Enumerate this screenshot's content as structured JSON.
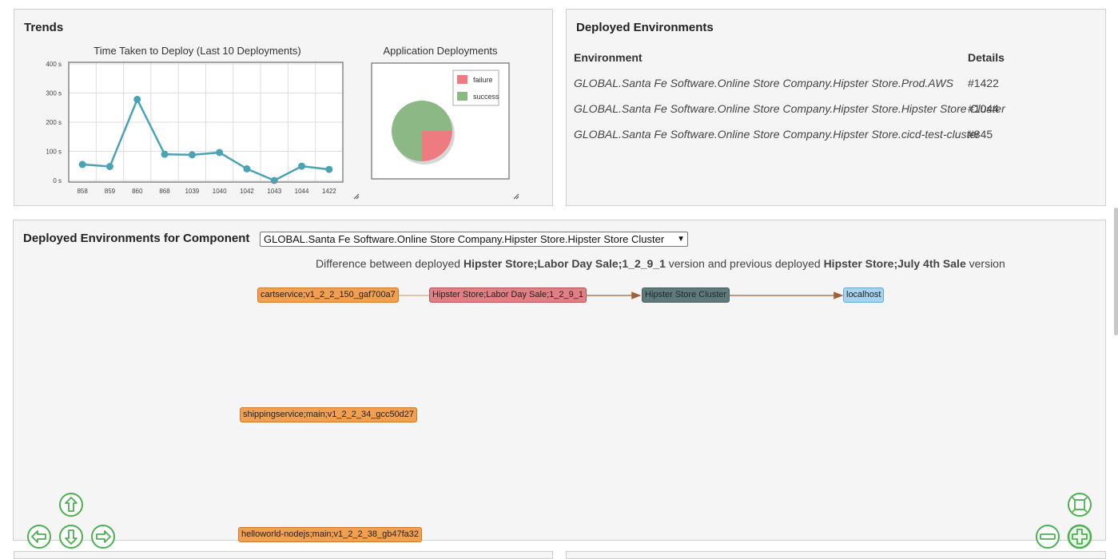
{
  "trends": {
    "title": "Trends",
    "line_chart": {
      "chart_data": {
        "type": "line",
        "title": "Time Taken to Deploy (Last 10 Deployments)",
        "categories": [
          "858",
          "859",
          "860",
          "868",
          "1039",
          "1040",
          "1042",
          "1043",
          "1044",
          "1422"
        ],
        "values": [
          55,
          48,
          278,
          90,
          88,
          96,
          40,
          0,
          49,
          38
        ],
        "y_ticks": [
          "0 s",
          "100 s",
          "200 s",
          "300 s",
          "400 s"
        ],
        "ylim": [
          0,
          400
        ],
        "grid": true,
        "color": "#4aa3b5"
      }
    },
    "pie_chart": {
      "chart_data": {
        "type": "pie",
        "title": "Application Deployments",
        "labels": [
          "failure",
          "success"
        ],
        "values": [
          25,
          75
        ],
        "colors": [
          "#ee7b7f",
          "#8cb886"
        ],
        "legend": "top-right"
      }
    }
  },
  "deployed_environments": {
    "title": "Deployed Environments",
    "headers": {
      "environment": "Environment",
      "details": "Details"
    },
    "rows": [
      {
        "environment": "GLOBAL.Santa Fe Software.Online Store Company.Hipster Store.Prod.AWS",
        "details": "#1422"
      },
      {
        "environment": "GLOBAL.Santa Fe Software.Online Store Company.Hipster Store.Hipster Store Cluster",
        "details": "#1044"
      },
      {
        "environment": "GLOBAL.Santa Fe Software.Online Store Company.Hipster Store.cicd-test-cluster",
        "details": "#845"
      }
    ]
  },
  "component_panel": {
    "title": "Deployed Environments for Component",
    "select_value": "GLOBAL.Santa Fe Software.Online Store Company.Hipster Store.Hipster Store Cluster",
    "diff": {
      "prefix": "Difference between deployed ",
      "current": "Hipster Store;Labor Day Sale;1_2_9_1",
      "middle": " version and previous deployed ",
      "previous": "Hipster Store;July 4th Sale",
      "suffix": " version"
    },
    "nodes": {
      "cartservice": "cartservice;v1_2_2_150_gaf700a7",
      "release": "Hipster Store;Labor Day Sale;1_2_9_1",
      "cluster": "Hipster Store Cluster",
      "localhost": "localhost",
      "shippingservice": "shippingservice;main;v1_2_2_34_gcc50d27",
      "helloworld": "helloworld-nodejs;main;v1_2_2_38_gb47fa32"
    },
    "colors": {
      "accent_green": "#4caf50",
      "edge": "#a0623a"
    }
  }
}
